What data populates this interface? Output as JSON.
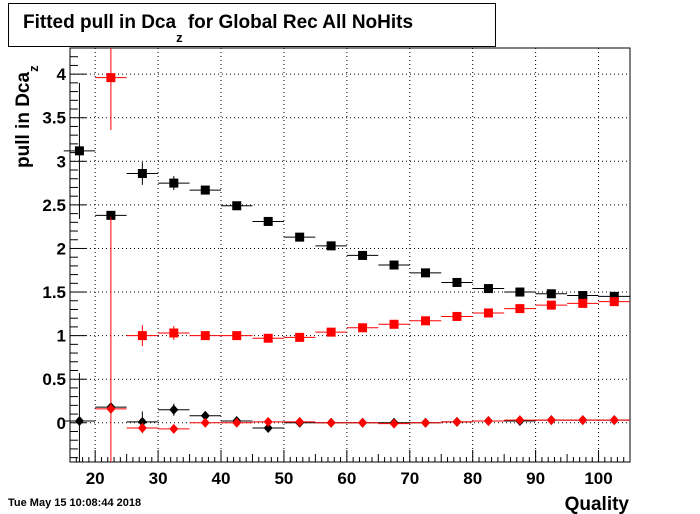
{
  "title": {
    "before_sub": "Fitted pull in Dca",
    "sub": "z",
    "after_sub": " for Global Rec All NoHits"
  },
  "timestamp": "Tue May 15 10:08:44 2018",
  "chart_data": {
    "type": "scatter",
    "xlabel": "Quality",
    "ylabel": {
      "main": "pull in Dca",
      "sub": "z"
    },
    "xlim": [
      16,
      105
    ],
    "ylim": [
      -0.45,
      4.3
    ],
    "x_ticks": [
      20,
      30,
      40,
      50,
      60,
      70,
      80,
      90,
      100
    ],
    "y_ticks": [
      0,
      0.5,
      1,
      1.5,
      2,
      2.5,
      3,
      3.5,
      4
    ],
    "grid": true,
    "colors": {
      "black": "#000000",
      "red": "#ff0000"
    },
    "series": [
      {
        "marker": "square",
        "color": "#000000",
        "x": [
          17.5,
          22.5,
          27.5,
          32.5,
          37.5,
          42.5,
          47.5,
          52.5,
          57.5,
          62.5,
          67.5,
          72.5,
          77.5,
          82.5,
          87.5,
          92.5,
          97.5,
          102.5
        ],
        "y": [
          3.12,
          2.38,
          2.86,
          2.75,
          2.67,
          2.49,
          2.31,
          2.13,
          2.03,
          1.92,
          1.81,
          1.72,
          1.61,
          1.54,
          1.5,
          1.48,
          1.46,
          1.45
        ],
        "err": [
          0.78,
          0.02,
          0.13,
          0.08,
          0.04,
          0.03,
          0.02,
          0.02,
          0.01,
          0.01,
          0.01,
          0.01,
          0.01,
          0.01,
          0.01,
          0.01,
          0.01,
          0.01
        ]
      },
      {
        "marker": "square",
        "color": "#ff0000",
        "x": [
          22.5,
          27.5,
          32.5,
          37.5,
          42.5,
          47.5,
          52.5,
          57.5,
          62.5,
          67.5,
          72.5,
          77.5,
          82.5,
          87.5,
          92.5,
          97.5,
          102.5
        ],
        "y": [
          3.96,
          1.0,
          1.03,
          1.0,
          1.0,
          0.97,
          0.98,
          1.04,
          1.09,
          1.13,
          1.17,
          1.22,
          1.26,
          1.31,
          1.35,
          1.37,
          1.39
        ],
        "err": [
          0.6,
          0.12,
          0.08,
          0.04,
          0.03,
          0.02,
          0.02,
          0.02,
          0.01,
          0.01,
          0.01,
          0.01,
          0.01,
          0.01,
          0.01,
          0.01,
          0.01
        ]
      },
      {
        "marker": "diamond",
        "color": "#000000",
        "x": [
          17.5,
          22.5,
          27.5,
          32.5,
          37.5,
          42.5,
          47.5,
          52.5,
          57.5,
          62.5,
          67.5,
          72.5,
          77.5,
          82.5,
          87.5,
          92.5,
          97.5,
          102.5
        ],
        "y": [
          0.02,
          0.18,
          0.01,
          0.15,
          0.08,
          0.02,
          -0.06,
          0.0,
          0.0,
          0.0,
          0.0,
          0.0,
          0.01,
          0.02,
          0.02,
          0.03,
          0.03,
          0.03
        ],
        "err": [
          0.55,
          0.02,
          0.12,
          0.07,
          0.04,
          0.02,
          0.02,
          0.01,
          0.01,
          0.01,
          0.01,
          0.01,
          0.01,
          0.01,
          0.01,
          0.01,
          0.01,
          0.01
        ]
      },
      {
        "marker": "diamond",
        "color": "#ff0000",
        "x": [
          22.5,
          27.5,
          32.5,
          37.5,
          42.5,
          47.5,
          52.5,
          57.5,
          62.5,
          67.5,
          72.5,
          77.5,
          82.5,
          87.5,
          92.5,
          97.5,
          102.5
        ],
        "y": [
          0.16,
          -0.06,
          -0.07,
          0.0,
          0.0,
          0.01,
          0.01,
          0.0,
          0.0,
          -0.01,
          0.0,
          0.01,
          0.02,
          0.03,
          0.03,
          0.03,
          0.03
        ],
        "err": [
          2.2,
          0.06,
          0.03,
          0.02,
          0.02,
          0.01,
          0.01,
          0.01,
          0.01,
          0.01,
          0.01,
          0.01,
          0.01,
          0.01,
          0.01,
          0.01,
          0.01
        ]
      }
    ]
  }
}
